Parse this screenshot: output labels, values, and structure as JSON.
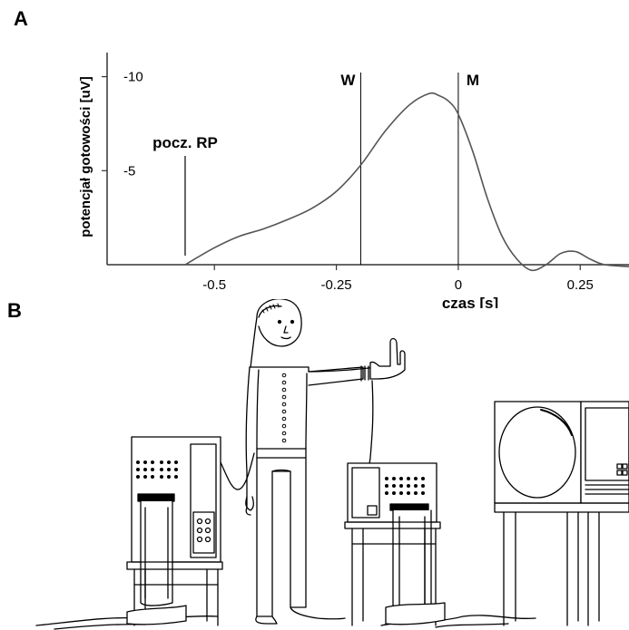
{
  "panels": {
    "a_label": "A",
    "b_label": "B"
  },
  "chart_data": {
    "type": "line",
    "title": "",
    "xlabel": "czas [s]",
    "ylabel": "potencjał gotowości [uV]",
    "xlim": [
      -0.72,
      0.35
    ],
    "ylim": [
      0,
      -10.8
    ],
    "x_ticks": [
      -0.5,
      -0.25,
      0,
      0.25
    ],
    "x_tick_labels": [
      "-0.5",
      "-0.25",
      "0",
      "0.25"
    ],
    "y_ticks": [
      -5,
      -10
    ],
    "y_tick_labels": [
      "-5",
      "-10"
    ],
    "grid": false,
    "series": [
      {
        "x": [
          -0.56,
          -0.5,
          -0.45,
          -0.4,
          -0.35,
          -0.3,
          -0.25,
          -0.2,
          -0.15,
          -0.1,
          -0.06,
          -0.04,
          -0.02,
          0.0,
          0.03,
          0.06,
          0.09,
          0.12,
          0.15,
          0.18,
          0.21,
          0.24,
          0.27,
          0.3,
          0.35
        ],
        "y": [
          0,
          -0.9,
          -1.5,
          -1.9,
          -2.4,
          -3.0,
          -3.9,
          -5.3,
          -7.1,
          -8.5,
          -9.1,
          -9.0,
          -8.7,
          -8.0,
          -6.0,
          -3.5,
          -1.5,
          -0.3,
          0.3,
          0.0,
          -0.6,
          -0.7,
          -0.3,
          0.0,
          0.1
        ]
      }
    ],
    "markers": [
      {
        "x": -0.56,
        "label": "pocz. RP"
      },
      {
        "x": -0.2,
        "label": "W"
      },
      {
        "x": 0.0,
        "label": "M"
      }
    ]
  },
  "colors": {
    "ink": "#000000",
    "trace": "#555555",
    "axis": "#333333"
  }
}
